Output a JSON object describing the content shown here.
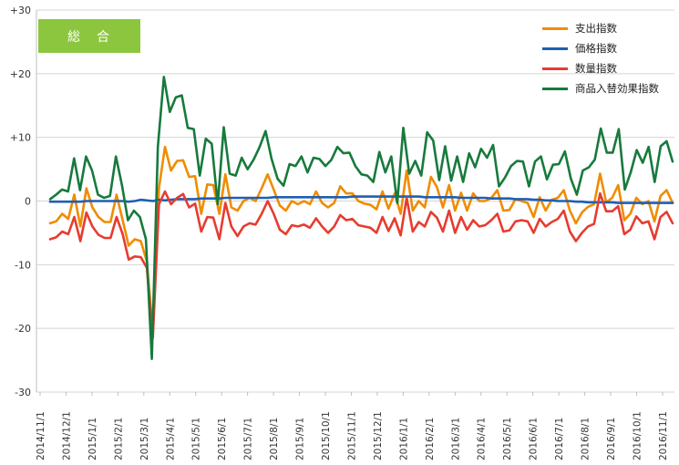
{
  "badge": {
    "label": "総　合"
  },
  "chart_data": {
    "type": "line",
    "title": "総合",
    "ylim": [
      -30,
      30
    ],
    "yticks": [
      {
        "value": 30,
        "label": "+30"
      },
      {
        "value": 20,
        "label": "+20"
      },
      {
        "value": 10,
        "label": "+10"
      },
      {
        "value": 0,
        "label": "0"
      },
      {
        "value": -10,
        "label": "-10"
      },
      {
        "value": -20,
        "label": "-20"
      },
      {
        "value": -30,
        "label": "-30"
      }
    ],
    "x_start": "2014/11/1",
    "x_end": "2016/11/1",
    "xtick_labels": [
      "2014/11/1",
      "2014/12/1",
      "2015/1/1",
      "2015/2/1",
      "2015/3/1",
      "2015/4/1",
      "2015/5/1",
      "2015/6/1",
      "2015/7/1",
      "2015/8/1",
      "2015/9/1",
      "2015/10/1",
      "2015/11/1",
      "2015/12/1",
      "2016/1/1",
      "2016/2/1",
      "2016/3/1",
      "2016/4/1",
      "2016/5/1",
      "2016/6/1",
      "2016/7/1",
      "2016/8/1",
      "2016/9/1",
      "2016/10/1",
      "2016/11/1"
    ],
    "grid": "horizontal",
    "legend": "top-right",
    "series": [
      {
        "name": "支出指数",
        "color": "#f08c00",
        "values": [
          -3.5,
          -3.2,
          -2.0,
          -2.8,
          1.0,
          -4.0,
          2.0,
          -1.0,
          -2.5,
          -3.3,
          -3.3,
          1.0,
          -3.0,
          -7.0,
          -6.0,
          -6.3,
          -9.5,
          -20.5,
          2.0,
          8.5,
          4.8,
          6.3,
          6.4,
          3.8,
          3.9,
          -2.0,
          2.6,
          2.5,
          -2.0,
          4.2,
          -1.0,
          -1.5,
          0.0,
          0.5,
          0.0,
          2.0,
          4.2,
          1.8,
          -0.7,
          -1.5,
          0.0,
          -0.5,
          0.0,
          -0.5,
          1.5,
          -0.3,
          -1.0,
          -0.3,
          2.3,
          1.2,
          1.2,
          0.0,
          -0.4,
          -0.6,
          -1.3,
          1.5,
          -1.2,
          1.2,
          -2.0,
          4.8,
          -1.5,
          0.0,
          -1.0,
          3.8,
          2.2,
          -1.0,
          2.5,
          -1.5,
          1.3,
          -1.5,
          1.2,
          0.0,
          0.0,
          0.5,
          1.7,
          -1.5,
          -1.4,
          0.3,
          0.0,
          -0.3,
          -2.5,
          0.6,
          -1.5,
          0.2,
          0.5,
          1.7,
          -1.5,
          -3.5,
          -1.8,
          -0.9,
          -0.5,
          4.3,
          -0.2,
          0.5,
          2.5,
          -3.0,
          -2.0,
          0.5,
          -0.5,
          0.0,
          -3.2,
          0.8,
          1.7,
          -0.3
        ]
      },
      {
        "name": "価格指数",
        "color": "#1f5fb3",
        "values": [
          -0.1,
          -0.1,
          -0.1,
          -0.1,
          -0.1,
          -0.1,
          0.0,
          0.0,
          0.0,
          0.0,
          0.0,
          0.0,
          0.0,
          -0.1,
          0.0,
          0.2,
          0.1,
          0.0,
          0.2,
          0.1,
          0.2,
          0.3,
          0.3,
          0.3,
          0.3,
          0.4,
          0.4,
          0.4,
          0.4,
          0.5,
          0.5,
          0.5,
          0.5,
          0.5,
          0.5,
          0.5,
          0.5,
          0.6,
          0.6,
          0.6,
          0.6,
          0.6,
          0.6,
          0.6,
          0.6,
          0.6,
          0.6,
          0.6,
          0.6,
          0.6,
          0.7,
          0.7,
          0.7,
          0.7,
          0.7,
          0.7,
          0.7,
          0.7,
          0.7,
          0.7,
          0.7,
          0.7,
          0.6,
          0.6,
          0.6,
          0.6,
          0.6,
          0.6,
          0.5,
          0.5,
          0.5,
          0.5,
          0.5,
          0.4,
          0.4,
          0.4,
          0.4,
          0.3,
          0.3,
          0.3,
          0.2,
          0.2,
          0.1,
          0.1,
          0.0,
          0.0,
          0.0,
          -0.1,
          -0.1,
          -0.2,
          -0.2,
          -0.2,
          -0.2,
          -0.2,
          -0.3,
          -0.3,
          -0.3,
          -0.3,
          -0.3,
          -0.3,
          -0.3,
          -0.3,
          -0.3,
          -0.3
        ]
      },
      {
        "name": "数量指数",
        "color": "#e63c2f",
        "values": [
          -6.0,
          -5.7,
          -4.8,
          -5.2,
          -2.5,
          -6.3,
          -1.8,
          -4.0,
          -5.3,
          -5.8,
          -5.8,
          -2.5,
          -5.2,
          -9.2,
          -8.7,
          -8.8,
          -10.5,
          -21.5,
          -0.5,
          1.5,
          -0.5,
          0.5,
          1.1,
          -1.0,
          -0.4,
          -4.8,
          -2.5,
          -2.6,
          -6.0,
          -0.3,
          -4.0,
          -5.5,
          -4.0,
          -3.5,
          -3.7,
          -2.0,
          0.0,
          -2.0,
          -4.5,
          -5.2,
          -3.8,
          -4.0,
          -3.7,
          -4.2,
          -2.7,
          -4.0,
          -5.0,
          -4.0,
          -2.2,
          -3.0,
          -2.8,
          -3.8,
          -4.0,
          -4.2,
          -5.0,
          -2.5,
          -4.7,
          -2.7,
          -5.4,
          0.5,
          -4.8,
          -3.3,
          -4.0,
          -1.7,
          -2.6,
          -4.8,
          -1.5,
          -5.0,
          -2.5,
          -4.5,
          -3.0,
          -4.0,
          -3.8,
          -3.0,
          -2.0,
          -4.8,
          -4.6,
          -3.2,
          -3.0,
          -3.2,
          -5.0,
          -2.8,
          -4.0,
          -3.3,
          -2.8,
          -1.5,
          -4.8,
          -6.3,
          -5.0,
          -4.0,
          -3.6,
          1.2,
          -1.6,
          -1.6,
          -0.8,
          -5.2,
          -4.5,
          -2.4,
          -3.5,
          -3.2,
          -6.0,
          -2.5,
          -1.7,
          -3.5
        ]
      },
      {
        "name": "商品入替効果指数",
        "color": "#177a3c",
        "values": [
          0.3,
          1.0,
          1.8,
          1.5,
          6.7,
          1.7,
          7.0,
          4.8,
          1.0,
          0.5,
          0.8,
          7.0,
          2.5,
          -3.0,
          -1.5,
          -2.5,
          -6.0,
          -24.8,
          8.5,
          19.5,
          14.0,
          16.3,
          16.6,
          11.5,
          11.3,
          4.0,
          9.8,
          9.0,
          -0.5,
          11.6,
          4.3,
          4.0,
          6.8,
          5.0,
          6.5,
          8.5,
          11.0,
          6.6,
          3.5,
          2.4,
          5.8,
          5.5,
          7.0,
          4.5,
          6.8,
          6.6,
          5.5,
          6.5,
          8.5,
          7.5,
          7.6,
          5.5,
          4.2,
          4.0,
          3.0,
          7.7,
          4.5,
          7.0,
          -0.3,
          11.5,
          4.3,
          6.3,
          4.0,
          10.8,
          9.5,
          3.3,
          8.6,
          3.2,
          7.0,
          3.0,
          7.5,
          5.3,
          8.2,
          6.8,
          8.8,
          2.3,
          3.7,
          5.5,
          6.3,
          6.2,
          2.3,
          6.2,
          7.0,
          3.4,
          5.7,
          5.8,
          7.8,
          3.5,
          1.0,
          4.8,
          5.3,
          6.5,
          11.4,
          7.6,
          7.6,
          11.3,
          1.8,
          4.5,
          8.0,
          6.0,
          8.5,
          3.0,
          8.6,
          9.4,
          6.2
        ]
      }
    ]
  }
}
